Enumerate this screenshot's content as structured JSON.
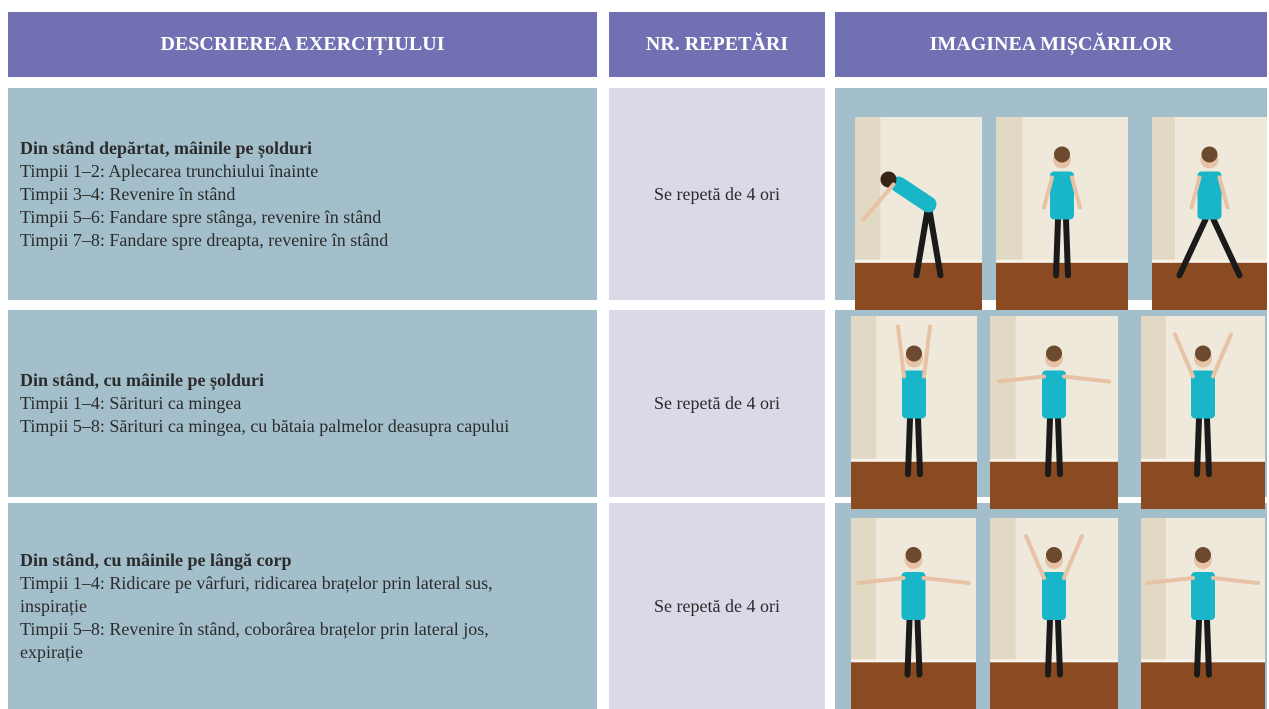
{
  "header": {
    "columns": [
      "DESCRIEREA EXERCIȚIULUI",
      "NR. REPETĂRI",
      "IMAGINEA MIȘCĂRILOR"
    ]
  },
  "rows": [
    {
      "title": "Din stând depărtat, mâinile pe șolduri",
      "lines": [
        "Timpii 1–2: Aplecarea trunchiului înainte",
        "Timpii 3–4: Revenire în stând",
        "Timpii 5–6: Fandare spre stânga, revenire în stând",
        "Timpii 7–8: Fandare spre dreapta, revenire în stând"
      ],
      "repetitions": "Se repetă de 4 ori"
    },
    {
      "title": "Din stând, cu mâinile pe șolduri",
      "lines": [
        "Timpii 1–4: Sărituri ca mingea",
        "Timpii 5–8: Sărituri ca mingea, cu bătaia palmelor deasupra capului"
      ],
      "repetitions": "Se repetă de 4 ori"
    },
    {
      "title": "Din stând, cu mâinile pe lângă corp",
      "lines": [
        "Timpii 1–4: Ridicare pe vârfuri, ridicarea brațelor prin lateral sus, inspirație",
        "Timpii 5–8: Revenire în stând, coborârea brațelor prin lateral jos, expirație"
      ],
      "repetitions": "Se repetă de 4 ori"
    }
  ]
}
